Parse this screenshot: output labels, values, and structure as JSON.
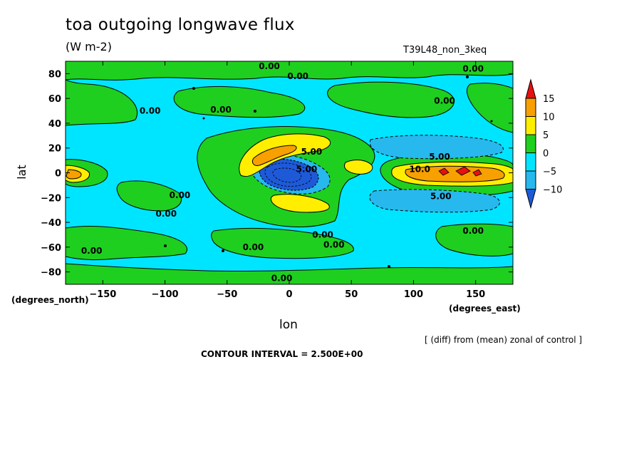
{
  "chart_data": {
    "type": "heatmap",
    "title": "toa outgoing longwave flux",
    "units": "(W m-2)",
    "run_name": "T39L48_non_3keq",
    "xlabel": "lon",
    "xlabel_units": "(degrees_east)",
    "ylabel": "lat",
    "ylabel_units": "(degrees_north)",
    "xlim": [
      -180,
      180
    ],
    "ylim": [
      -90,
      90
    ],
    "x_ticks": [
      -150,
      -100,
      -50,
      0,
      50,
      100,
      150
    ],
    "y_ticks": [
      -80,
      -60,
      -40,
      -20,
      0,
      20,
      40,
      60,
      80
    ],
    "note": "[ (diff) from (mean) zonal of control ]",
    "contour_interval_text": "CONTOUR INTERVAL = 2.500E+00",
    "colorbar": {
      "levels": [
        -10,
        -5,
        0,
        5,
        10,
        15
      ],
      "labels": [
        "15",
        "10",
        "5",
        "0",
        "-5",
        "-10"
      ],
      "colors": [
        "#1e5ad8",
        "#27b8ee",
        "#00e5ff",
        "#1fcf1f",
        "#ffee00",
        "#f7a000",
        "#e81010"
      ]
    },
    "contour_labels": [
      {
        "text": "0.00",
        "lon": -16,
        "lat": 86
      },
      {
        "text": "0.00",
        "lon": 7,
        "lat": 78
      },
      {
        "text": "0.00",
        "lon": 148,
        "lat": 84
      },
      {
        "text": "0.00",
        "lon": -112,
        "lat": 50
      },
      {
        "text": "0.00",
        "lon": -55,
        "lat": 51
      },
      {
        "text": "0.00",
        "lon": 125,
        "lat": 58
      },
      {
        "text": "5.00",
        "lon": 121,
        "lat": 13
      },
      {
        "text": "5.00",
        "lon": 18,
        "lat": 17
      },
      {
        "text": "5.00",
        "lon": 14,
        "lat": 3
      },
      {
        "text": "10.0",
        "lon": 105,
        "lat": 3
      },
      {
        "text": "0.00",
        "lon": -88,
        "lat": -18
      },
      {
        "text": "5.00",
        "lon": 122,
        "lat": -19
      },
      {
        "text": "0.00",
        "lon": -99,
        "lat": -33
      },
      {
        "text": "0.00",
        "lon": 27,
        "lat": -50
      },
      {
        "text": "0.00",
        "lon": 148,
        "lat": -47
      },
      {
        "text": "0.00",
        "lon": -29,
        "lat": -60
      },
      {
        "text": "0.00",
        "lon": 36,
        "lat": -58
      },
      {
        "text": "0.00",
        "lon": -159,
        "lat": -63
      },
      {
        "text": "0.00",
        "lon": -6,
        "lat": -85
      }
    ]
  }
}
